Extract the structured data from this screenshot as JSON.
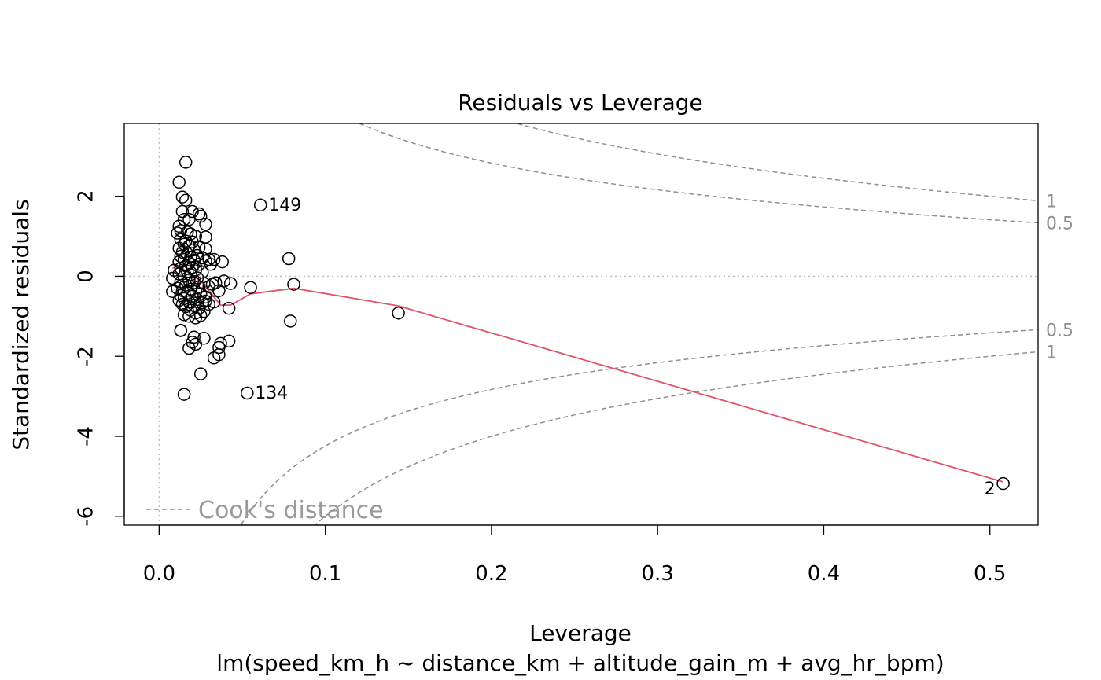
{
  "chart_data": {
    "type": "scatter",
    "title": "Residuals vs Leverage",
    "xlabel": "Leverage",
    "subtitle": "lm(speed_km_h ~ distance_km + altitude_gain_m + avg_hr_bpm)",
    "ylabel": "Standardized residuals",
    "xlim": [
      -0.021,
      0.529
    ],
    "ylim": [
      -6.22,
      3.82
    ],
    "xticks": [
      0.0,
      0.1,
      0.2,
      0.3,
      0.4,
      0.5
    ],
    "xtick_labels": [
      "0.0",
      "0.1",
      "0.2",
      "0.3",
      "0.4",
      "0.5"
    ],
    "yticks": [
      -6,
      -4,
      -2,
      0,
      2
    ],
    "ytick_labels": [
      "-6",
      "-4",
      "-2",
      "0",
      "2"
    ],
    "grid": false,
    "points": [
      {
        "x": 0.016,
        "y": 2.85
      },
      {
        "x": 0.012,
        "y": 2.35
      },
      {
        "x": 0.014,
        "y": 1.98
      },
      {
        "x": 0.016,
        "y": 1.9
      },
      {
        "x": 0.014,
        "y": 1.62
      },
      {
        "x": 0.02,
        "y": 1.62
      },
      {
        "x": 0.024,
        "y": 1.56
      },
      {
        "x": 0.025,
        "y": 1.5
      },
      {
        "x": 0.018,
        "y": 1.42
      },
      {
        "x": 0.015,
        "y": 1.42
      },
      {
        "x": 0.028,
        "y": 1.3
      },
      {
        "x": 0.012,
        "y": 1.25
      },
      {
        "x": 0.013,
        "y": 1.14
      },
      {
        "x": 0.017,
        "y": 1.1
      },
      {
        "x": 0.011,
        "y": 1.08
      },
      {
        "x": 0.019,
        "y": 1.06
      },
      {
        "x": 0.022,
        "y": 1.0
      },
      {
        "x": 0.028,
        "y": 0.98
      },
      {
        "x": 0.013,
        "y": 0.92
      },
      {
        "x": 0.016,
        "y": 0.88
      },
      {
        "x": 0.02,
        "y": 0.86
      },
      {
        "x": 0.015,
        "y": 0.8
      },
      {
        "x": 0.018,
        "y": 0.76
      },
      {
        "x": 0.024,
        "y": 0.72
      },
      {
        "x": 0.028,
        "y": 0.68
      },
      {
        "x": 0.012,
        "y": 0.7
      },
      {
        "x": 0.021,
        "y": 0.66
      },
      {
        "x": 0.014,
        "y": 0.6
      },
      {
        "x": 0.017,
        "y": 0.56
      },
      {
        "x": 0.023,
        "y": 0.52
      },
      {
        "x": 0.013,
        "y": 0.5
      },
      {
        "x": 0.019,
        "y": 0.48
      },
      {
        "x": 0.026,
        "y": 0.46
      },
      {
        "x": 0.03,
        "y": 0.42
      },
      {
        "x": 0.015,
        "y": 0.42
      },
      {
        "x": 0.021,
        "y": 0.4
      },
      {
        "x": 0.028,
        "y": 0.38
      },
      {
        "x": 0.012,
        "y": 0.36
      },
      {
        "x": 0.018,
        "y": 0.34
      },
      {
        "x": 0.024,
        "y": 0.3
      },
      {
        "x": 0.016,
        "y": 0.26
      },
      {
        "x": 0.02,
        "y": 0.22
      },
      {
        "x": 0.013,
        "y": 0.2
      },
      {
        "x": 0.022,
        "y": 0.16
      },
      {
        "x": 0.009,
        "y": 0.15
      },
      {
        "x": 0.017,
        "y": 0.12
      },
      {
        "x": 0.026,
        "y": 0.1
      },
      {
        "x": 0.012,
        "y": 0.06
      },
      {
        "x": 0.019,
        "y": 0.04
      },
      {
        "x": 0.015,
        "y": 0.0
      },
      {
        "x": 0.008,
        "y": -0.05
      },
      {
        "x": 0.023,
        "y": -0.04
      },
      {
        "x": 0.018,
        "y": -0.1
      },
      {
        "x": 0.013,
        "y": -0.14
      },
      {
        "x": 0.021,
        "y": -0.16
      },
      {
        "x": 0.027,
        "y": -0.18
      },
      {
        "x": 0.016,
        "y": -0.22
      },
      {
        "x": 0.024,
        "y": -0.26
      },
      {
        "x": 0.011,
        "y": -0.3
      },
      {
        "x": 0.019,
        "y": -0.32
      },
      {
        "x": 0.014,
        "y": -0.36
      },
      {
        "x": 0.022,
        "y": -0.38
      },
      {
        "x": 0.008,
        "y": -0.38
      },
      {
        "x": 0.017,
        "y": -0.42
      },
      {
        "x": 0.025,
        "y": -0.44
      },
      {
        "x": 0.013,
        "y": -0.48
      },
      {
        "x": 0.02,
        "y": -0.5
      },
      {
        "x": 0.028,
        "y": -0.52
      },
      {
        "x": 0.015,
        "y": -0.56
      },
      {
        "x": 0.023,
        "y": -0.58
      },
      {
        "x": 0.012,
        "y": -0.6
      },
      {
        "x": 0.018,
        "y": -0.64
      },
      {
        "x": 0.026,
        "y": -0.66
      },
      {
        "x": 0.014,
        "y": -0.7
      },
      {
        "x": 0.021,
        "y": -0.72
      },
      {
        "x": 0.03,
        "y": -0.7
      },
      {
        "x": 0.016,
        "y": -0.76
      },
      {
        "x": 0.024,
        "y": -0.8
      },
      {
        "x": 0.019,
        "y": -0.85
      },
      {
        "x": 0.027,
        "y": -0.88
      },
      {
        "x": 0.022,
        "y": -0.92
      },
      {
        "x": 0.015,
        "y": -0.96
      },
      {
        "x": 0.025,
        "y": -0.98
      },
      {
        "x": 0.018,
        "y": -1.0
      },
      {
        "x": 0.022,
        "y": -1.04
      },
      {
        "x": 0.013,
        "y": -1.35
      },
      {
        "x": 0.013,
        "y": -1.36
      },
      {
        "x": 0.021,
        "y": -1.52
      },
      {
        "x": 0.027,
        "y": -1.55
      },
      {
        "x": 0.02,
        "y": -1.65
      },
      {
        "x": 0.022,
        "y": -1.7
      },
      {
        "x": 0.018,
        "y": -1.8
      },
      {
        "x": 0.037,
        "y": -1.68
      },
      {
        "x": 0.036,
        "y": -1.78
      },
      {
        "x": 0.042,
        "y": -1.62
      },
      {
        "x": 0.036,
        "y": -1.96
      },
      {
        "x": 0.033,
        "y": -2.04
      },
      {
        "x": 0.025,
        "y": -2.44
      },
      {
        "x": 0.015,
        "y": -2.95
      },
      {
        "x": 0.033,
        "y": 0.42
      },
      {
        "x": 0.038,
        "y": 0.36
      },
      {
        "x": 0.031,
        "y": 0.3
      },
      {
        "x": 0.034,
        "y": -0.16
      },
      {
        "x": 0.039,
        "y": -0.12
      },
      {
        "x": 0.043,
        "y": -0.18
      },
      {
        "x": 0.036,
        "y": -0.36
      },
      {
        "x": 0.032,
        "y": -0.2
      },
      {
        "x": 0.03,
        "y": -0.26
      },
      {
        "x": 0.033,
        "y": -0.64
      },
      {
        "x": 0.028,
        "y": -0.62
      },
      {
        "x": 0.042,
        "y": -0.8
      },
      {
        "x": 0.055,
        "y": -0.28
      },
      {
        "x": 0.078,
        "y": 0.44
      },
      {
        "x": 0.081,
        "y": -0.2
      },
      {
        "x": 0.079,
        "y": -1.12
      },
      {
        "x": 0.144,
        "y": -0.92
      },
      {
        "x": 0.061,
        "y": 1.78
      },
      {
        "x": 0.053,
        "y": -2.92
      },
      {
        "x": 0.508,
        "y": -5.18
      }
    ],
    "point_labels": [
      {
        "text": "149",
        "x": 0.061,
        "y": 1.78
      },
      {
        "text": "134",
        "x": 0.053,
        "y": -2.92
      },
      {
        "text": "2",
        "x": 0.508,
        "y": -5.18
      }
    ],
    "smooth": [
      {
        "x": 0.008,
        "y": 0.2
      },
      {
        "x": 0.012,
        "y": 0.26
      },
      {
        "x": 0.016,
        "y": 0.14
      },
      {
        "x": 0.02,
        "y": 0.02
      },
      {
        "x": 0.025,
        "y": -0.12
      },
      {
        "x": 0.03,
        "y": -0.36
      },
      {
        "x": 0.037,
        "y": -0.72
      },
      {
        "x": 0.043,
        "y": -0.72
      },
      {
        "x": 0.055,
        "y": -0.44
      },
      {
        "x": 0.081,
        "y": -0.3
      },
      {
        "x": 0.144,
        "y": -0.74
      },
      {
        "x": 0.508,
        "y": -5.14
      }
    ],
    "cooks_distance": {
      "legend": "Cook's distance",
      "levels": [
        0.5,
        1
      ],
      "level_labels": [
        "0.5",
        "1"
      ],
      "n_params": 4
    }
  }
}
